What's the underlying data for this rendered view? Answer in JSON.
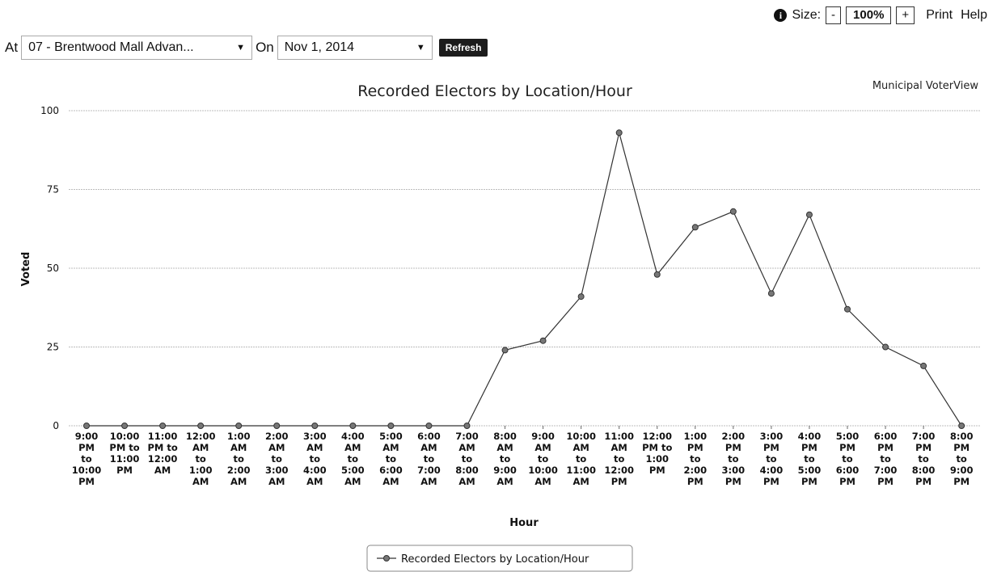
{
  "toolbar": {
    "info_icon": "info-icon",
    "size_label": "Size:",
    "decrease_label": "-",
    "zoom_value": "100%",
    "increase_label": "+",
    "print_label": "Print",
    "help_label": "Help"
  },
  "filters": {
    "at_label": "At",
    "location_value": "07 - Brentwood Mall Advan...",
    "on_label": "On",
    "date_value": "Nov 1, 2014",
    "refresh_label": "Refresh"
  },
  "chart_data": {
    "type": "line",
    "title": "Recorded Electors by Location/Hour",
    "credit": "Municipal VoterView",
    "xlabel": "Hour",
    "ylabel": "Voted",
    "ylim": [
      0,
      100
    ],
    "yticks": [
      0,
      25,
      50,
      75,
      100
    ],
    "grid": true,
    "legend_position": "bottom",
    "line_color": "#333333",
    "categories": [
      [
        "9:00",
        "PM",
        "to",
        "10:00",
        "PM"
      ],
      [
        "10:00",
        "PM to",
        "11:00",
        "PM"
      ],
      [
        "11:00",
        "PM to",
        "12:00",
        "AM"
      ],
      [
        "12:00",
        "AM",
        "to",
        "1:00",
        "AM"
      ],
      [
        "1:00",
        "AM",
        "to",
        "2:00",
        "AM"
      ],
      [
        "2:00",
        "AM",
        "to",
        "3:00",
        "AM"
      ],
      [
        "3:00",
        "AM",
        "to",
        "4:00",
        "AM"
      ],
      [
        "4:00",
        "AM",
        "to",
        "5:00",
        "AM"
      ],
      [
        "5:00",
        "AM",
        "to",
        "6:00",
        "AM"
      ],
      [
        "6:00",
        "AM",
        "to",
        "7:00",
        "AM"
      ],
      [
        "7:00",
        "AM",
        "to",
        "8:00",
        "AM"
      ],
      [
        "8:00",
        "AM",
        "to",
        "9:00",
        "AM"
      ],
      [
        "9:00",
        "AM",
        "to",
        "10:00",
        "AM"
      ],
      [
        "10:00",
        "AM",
        "to",
        "11:00",
        "AM"
      ],
      [
        "11:00",
        "AM",
        "to",
        "12:00",
        "PM"
      ],
      [
        "12:00",
        "PM to",
        "1:00",
        "PM"
      ],
      [
        "1:00",
        "PM",
        "to",
        "2:00",
        "PM"
      ],
      [
        "2:00",
        "PM",
        "to",
        "3:00",
        "PM"
      ],
      [
        "3:00",
        "PM",
        "to",
        "4:00",
        "PM"
      ],
      [
        "4:00",
        "PM",
        "to",
        "5:00",
        "PM"
      ],
      [
        "5:00",
        "PM",
        "to",
        "6:00",
        "PM"
      ],
      [
        "6:00",
        "PM",
        "to",
        "7:00",
        "PM"
      ],
      [
        "7:00",
        "PM",
        "to",
        "8:00",
        "PM"
      ],
      [
        "8:00",
        "PM",
        "to",
        "9:00",
        "PM"
      ]
    ],
    "series": [
      {
        "name": "Recorded Electors by Location/Hour",
        "values": [
          0,
          0,
          0,
          0,
          0,
          0,
          0,
          0,
          0,
          0,
          0,
          24,
          27,
          41,
          93,
          48,
          63,
          68,
          42,
          67,
          37,
          25,
          19,
          0
        ]
      }
    ]
  }
}
